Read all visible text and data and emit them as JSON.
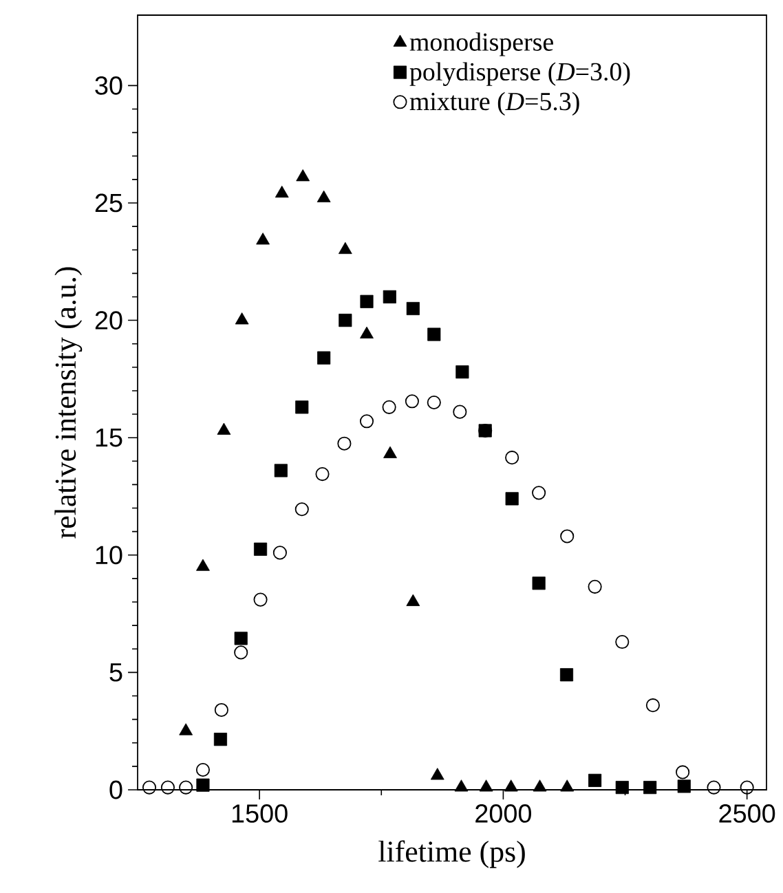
{
  "chart_data": {
    "type": "scatter",
    "xlabel": "lifetime  (ps)",
    "ylabel": "relative intensity  (a.u.)",
    "xlim": [
      1250,
      2540
    ],
    "ylim": [
      0,
      33
    ],
    "xticks": [
      1500,
      2000,
      2500
    ],
    "yticks": [
      0,
      5,
      10,
      15,
      20,
      25,
      30
    ],
    "grid": false,
    "legend": "top right",
    "series": [
      {
        "name": "monodisperse",
        "color": "#000000",
        "marker": "triangle",
        "x": [
          1349,
          1384,
          1427,
          1464,
          1507,
          1546,
          1589,
          1632,
          1676,
          1720,
          1768,
          1815,
          1865,
          1914,
          1965,
          2016,
          2075,
          2131
        ],
        "values": [
          2.5,
          9.5,
          15.3,
          20.0,
          23.4,
          25.4,
          26.1,
          25.2,
          23.0,
          19.4,
          14.3,
          8.0,
          0.6,
          0.1,
          0.1,
          0.1,
          0.1,
          0.1
        ]
      },
      {
        "name": "polydisperse (*D*=3.0)",
        "color": "#000000",
        "marker": "square",
        "x": [
          1384,
          1420,
          1462,
          1502,
          1544,
          1587,
          1632,
          1676,
          1720,
          1767,
          1815,
          1858,
          1916,
          1963,
          2018,
          2073,
          2130,
          2188,
          2244,
          2301,
          2371
        ],
        "values": [
          0.2,
          2.15,
          6.45,
          10.25,
          13.6,
          16.3,
          18.4,
          20.0,
          20.8,
          21.0,
          20.5,
          19.4,
          17.8,
          15.3,
          12.4,
          8.8,
          4.9,
          0.4,
          0.1,
          0.1,
          0.15
        ]
      },
      {
        "name": "mixture (*D*=5.3)",
        "color": "#000000",
        "marker": "circle",
        "x": [
          1274,
          1312,
          1349,
          1384,
          1422,
          1462,
          1502,
          1542,
          1587,
          1629,
          1674,
          1720,
          1766,
          1813,
          1858,
          1911,
          1963,
          2018,
          2073,
          2131,
          2188,
          2244,
          2307,
          2368,
          2432,
          2500
        ],
        "values": [
          0.1,
          0.1,
          0.1,
          0.85,
          3.4,
          5.85,
          8.1,
          10.1,
          11.95,
          13.45,
          14.75,
          15.7,
          16.3,
          16.55,
          16.5,
          16.1,
          15.3,
          14.15,
          12.65,
          10.8,
          8.65,
          6.3,
          3.6,
          0.75,
          0.1,
          0.1
        ]
      }
    ]
  }
}
